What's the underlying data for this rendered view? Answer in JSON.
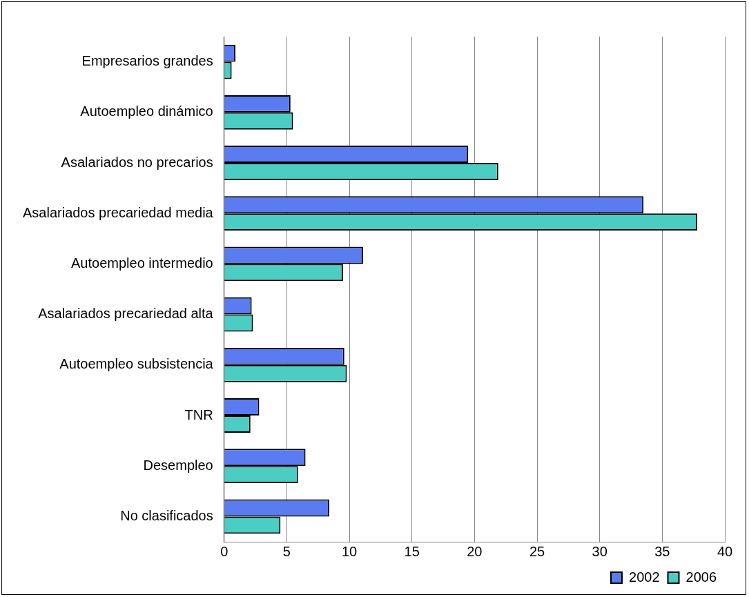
{
  "chart_data": {
    "type": "bar",
    "orientation": "horizontal",
    "categories": [
      "Empresarios grandes",
      "Autoempleo dinámico",
      "Asalariados no precarios",
      "Asalariados precariedad media",
      "Autoempleo intermedio",
      "Asalariados precariedad alta",
      "Autoempleo subsistencia",
      "TNR",
      "Desempleo",
      "No clasificados"
    ],
    "series": [
      {
        "name": "2002",
        "color": "#5b7cf0",
        "values": [
          0.9,
          5.3,
          19.5,
          33.5,
          11.1,
          2.2,
          9.6,
          2.8,
          6.5,
          8.4
        ]
      },
      {
        "name": "2006",
        "color": "#4ccdc4",
        "values": [
          0.6,
          5.5,
          21.9,
          37.8,
          9.5,
          2.3,
          9.8,
          2.1,
          5.9,
          4.5
        ]
      }
    ],
    "xlim": [
      0,
      40
    ],
    "xticks": [
      0,
      5,
      10,
      15,
      20,
      25,
      30,
      35,
      40
    ],
    "grid": "x",
    "legend": "bottom right"
  }
}
